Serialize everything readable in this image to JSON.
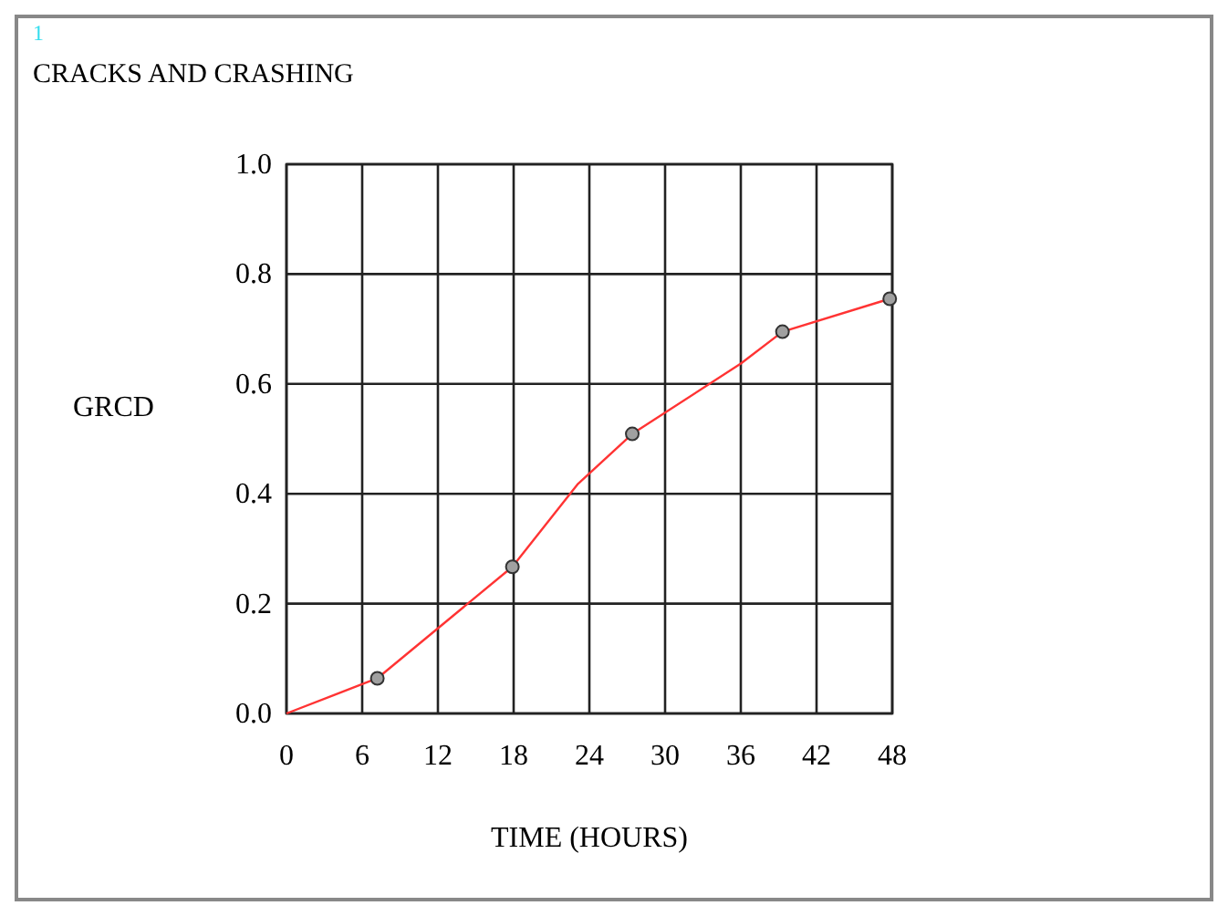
{
  "chart_data": {
    "type": "line",
    "title": "CRACKS AND CRASHING",
    "xlabel": "TIME (HOURS)",
    "ylabel": "GRCD",
    "annotations": [
      "1"
    ],
    "xlim": [
      0,
      48
    ],
    "xticks": [
      0,
      6,
      12,
      18,
      24,
      30,
      36,
      42,
      48
    ],
    "ylim": [
      0,
      1
    ],
    "yticks": [
      {
        "value": 0,
        "label": "0.0"
      },
      0.2,
      0.4,
      0.6,
      0.8,
      {
        "value": 1,
        "label": "1.0"
      }
    ],
    "grid": true,
    "series": [
      {
        "color": "#ff3333",
        "marker": "none",
        "x": [
          0,
          7.2,
          17.9,
          23.1,
          27.4,
          36,
          39.3,
          47.8
        ],
        "values": [
          0,
          0.064,
          0.267,
          0.418,
          0.509,
          0.637,
          0.695,
          0.755
        ]
      },
      {
        "type": "scatter",
        "color": "#a0a0a0",
        "marker": "circle",
        "x": [
          7.2,
          17.9,
          27.4,
          39.3,
          47.8
        ],
        "values": [
          0.064,
          0.267,
          0.509,
          0.695,
          0.755
        ]
      }
    ]
  }
}
